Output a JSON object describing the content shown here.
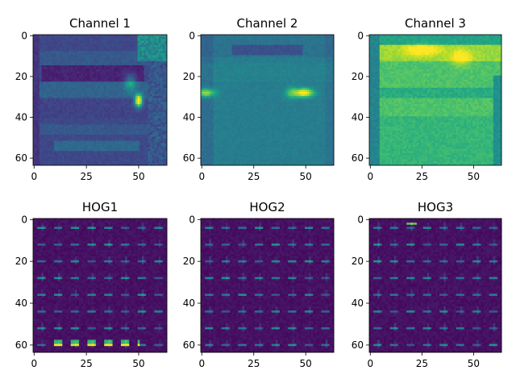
{
  "chart_data": [
    {
      "type": "heatmap",
      "title": "Channel 1",
      "size": [
        64,
        64
      ],
      "x_ticks": [
        0,
        25,
        50
      ],
      "y_ticks": [
        0,
        20,
        40,
        60
      ],
      "colormap": "viridis",
      "grid": false,
      "description_values": "dark teal car rear image with bright spot near (50, 32)"
    },
    {
      "type": "heatmap",
      "title": "Channel 2",
      "size": [
        64,
        64
      ],
      "x_ticks": [
        0,
        25,
        50
      ],
      "y_ticks": [
        0,
        20,
        40,
        60
      ],
      "colormap": "viridis",
      "grid": false
    },
    {
      "type": "heatmap",
      "title": "Channel 3",
      "size": [
        64,
        64
      ],
      "x_ticks": [
        0,
        25,
        50
      ],
      "y_ticks": [
        0,
        20,
        40,
        60
      ],
      "colormap": "viridis",
      "grid": false
    },
    {
      "type": "heatmap",
      "title": "HOG1",
      "size": [
        64,
        64
      ],
      "x_ticks": [
        0,
        25,
        50
      ],
      "y_ticks": [
        0,
        20,
        40,
        60
      ],
      "colormap": "viridis",
      "grid": false
    },
    {
      "type": "heatmap",
      "title": "HOG2",
      "size": [
        64,
        64
      ],
      "x_ticks": [
        0,
        25,
        50
      ],
      "y_ticks": [
        0,
        20,
        40,
        60
      ],
      "colormap": "viridis",
      "grid": false
    },
    {
      "type": "heatmap",
      "title": "HOG3",
      "size": [
        64,
        64
      ],
      "x_ticks": [
        0,
        25,
        50
      ],
      "y_ticks": [
        0,
        20,
        40,
        60
      ],
      "colormap": "viridis",
      "grid": false
    }
  ]
}
